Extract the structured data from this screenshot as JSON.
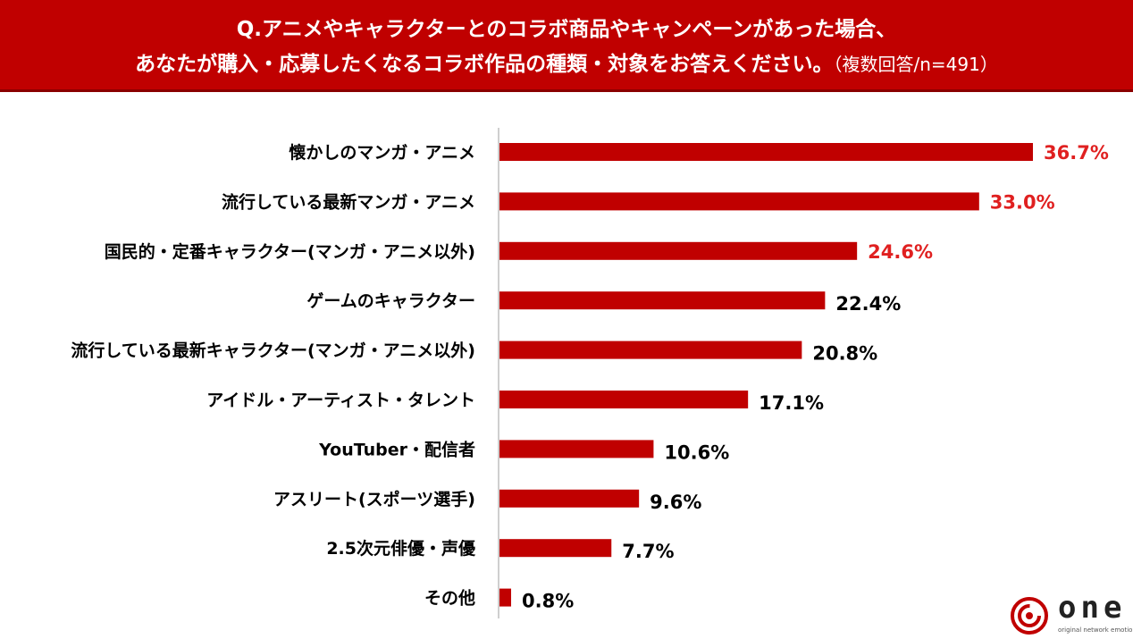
{
  "header": {
    "line1": "Q.アニメやキャラクターとのコラボ商品やキャンペーンがあった場合、",
    "line2": "あなたが購入・応募したくなるコラボ作品の種類・対象をお答えください。",
    "note": "（複数回答/n=491）"
  },
  "logo": {
    "word": "one",
    "tagline": "original network emotion"
  },
  "chart_data": {
    "type": "bar",
    "orientation": "horizontal",
    "categories": [
      "懐かしのマンガ・アニメ",
      "流行している最新マンガ・アニメ",
      "国民的・定番キャラクター(マンガ・アニメ以外)",
      "ゲームのキャラクター",
      "流行している最新キャラクター(マンガ・アニメ以外)",
      "アイドル・アーティスト・タレント",
      "YouTuber・配信者",
      "アスリート(スポーツ選手)",
      "2.5次元俳優・声優",
      "その他"
    ],
    "values": [
      36.7,
      33.0,
      24.6,
      22.4,
      20.8,
      17.1,
      10.6,
      9.6,
      7.7,
      0.8
    ],
    "labels": [
      "36.7%",
      "33.0%",
      "24.6%",
      "22.4%",
      "20.8%",
      "17.1%",
      "10.6%",
      "9.6%",
      "7.7%",
      "0.8%"
    ],
    "highlight_top": 3,
    "bar_color": "#c00000",
    "highlight_label_color": "#e02020",
    "label_color": "#000000",
    "xlim": [
      0,
      36.7
    ],
    "grid": false
  }
}
